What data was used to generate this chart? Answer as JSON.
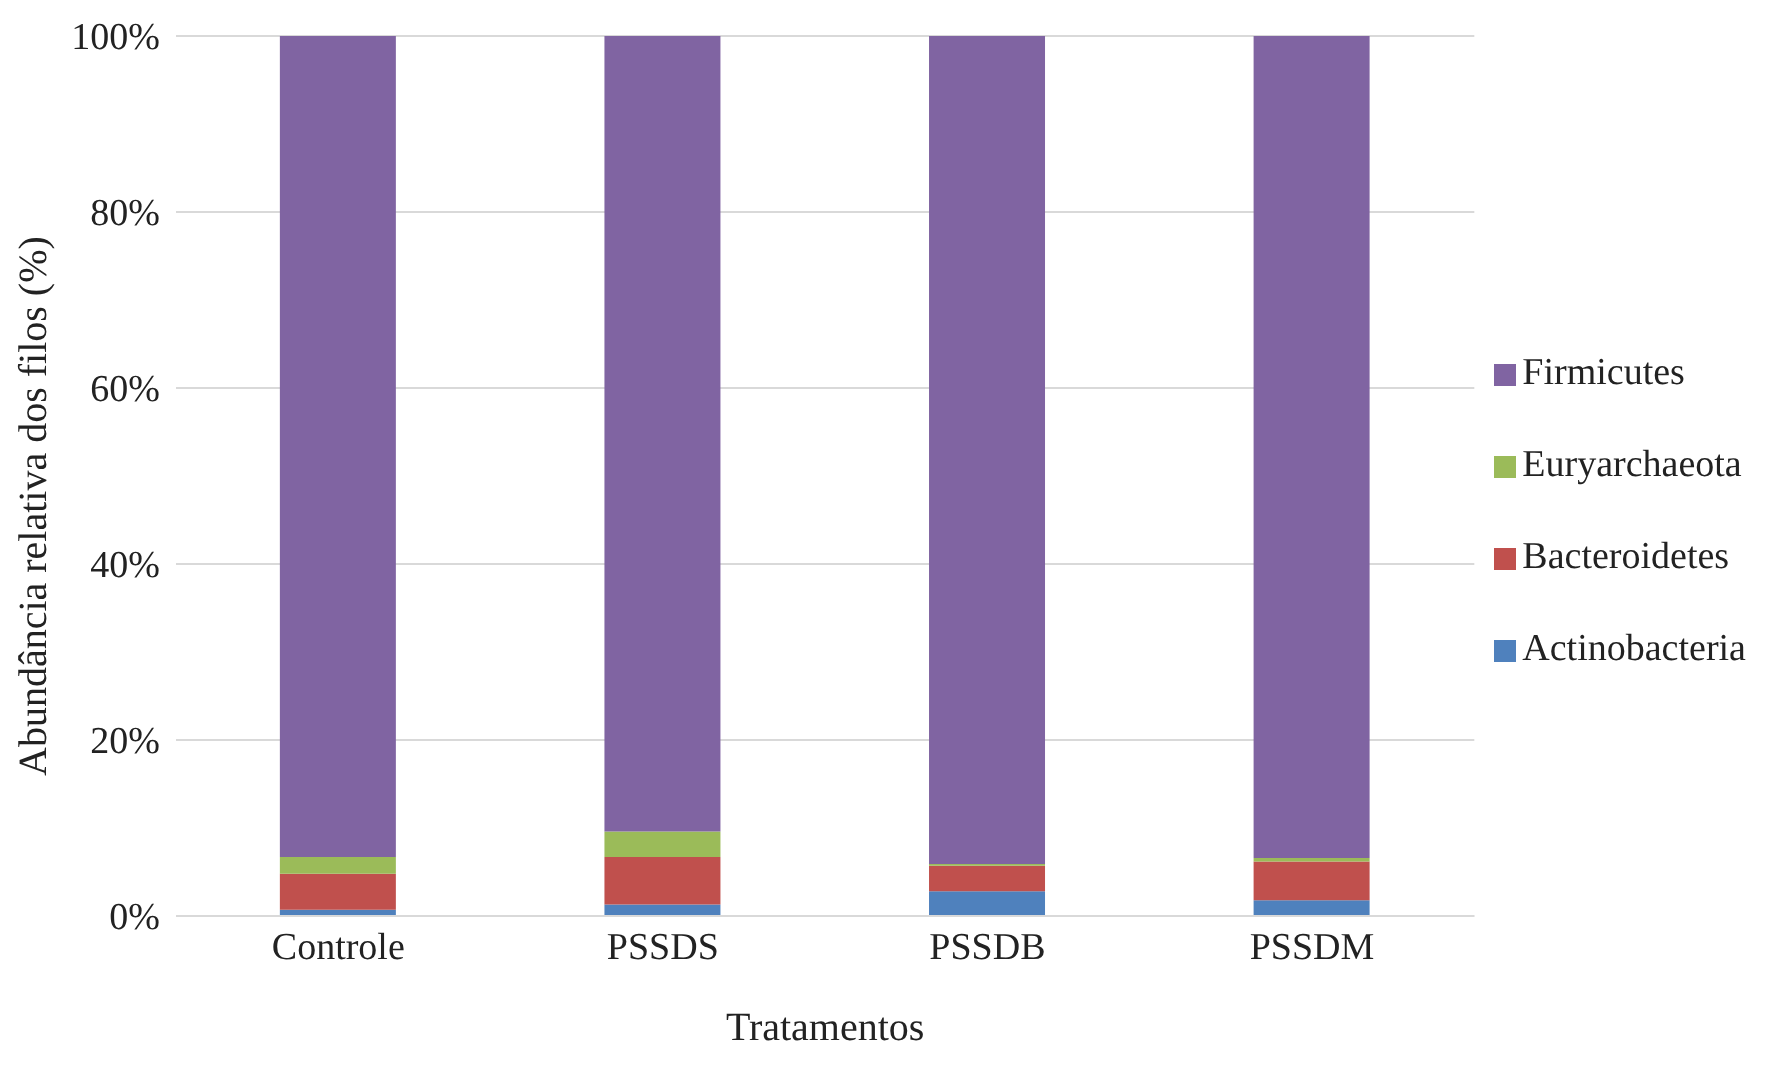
{
  "chart_data": {
    "type": "bar",
    "stacked": true,
    "xlabel": "Tratamentos",
    "ylabel": "Abundância relativa dos filos (%)",
    "categories": [
      "Controle",
      "PSSDS",
      "PSSDB",
      "PSSDM"
    ],
    "series": [
      {
        "name": "Actinobacteria",
        "color": "#4f81bd",
        "values": [
          0.7,
          1.3,
          2.8,
          1.8
        ]
      },
      {
        "name": "Bacteroidetes",
        "color": "#c0504d",
        "values": [
          4.1,
          5.4,
          2.9,
          4.4
        ]
      },
      {
        "name": "Euryarchaeota",
        "color": "#9bbb59",
        "values": [
          1.9,
          2.9,
          0.2,
          0.4
        ]
      },
      {
        "name": "Firmicutes",
        "color": "#8064a2",
        "values": [
          93.3,
          90.4,
          94.1,
          93.4
        ]
      }
    ],
    "ylim": [
      0,
      100
    ],
    "yticks": [
      {
        "value": 0,
        "label": "0%"
      },
      {
        "value": 20,
        "label": "20%"
      },
      {
        "value": 40,
        "label": "40%"
      },
      {
        "value": 60,
        "label": "60%"
      },
      {
        "value": 80,
        "label": "80%"
      },
      {
        "value": 100,
        "label": "100%"
      }
    ],
    "grid": "y",
    "legend": "right"
  }
}
